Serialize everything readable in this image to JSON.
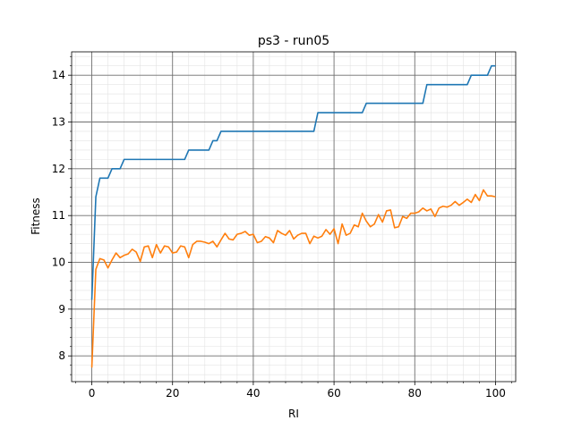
{
  "chart_data": {
    "type": "line",
    "title": "ps3 - run05",
    "xlabel": "RI",
    "ylabel": "Fitness",
    "xlim": [
      -5,
      105
    ],
    "ylim": [
      7.45,
      14.5
    ],
    "grid": true,
    "minor_grid": true,
    "xticks": [
      0,
      20,
      40,
      60,
      80,
      100
    ],
    "yticks": [
      8,
      9,
      10,
      11,
      12,
      13,
      14
    ],
    "series": [
      {
        "color": "#1f77b4",
        "x": [
          0,
          1,
          2,
          3,
          4,
          5,
          6,
          7,
          8,
          9,
          10,
          11,
          12,
          13,
          14,
          15,
          16,
          17,
          18,
          19,
          20,
          21,
          22,
          23,
          24,
          25,
          26,
          27,
          28,
          29,
          30,
          31,
          32,
          33,
          34,
          35,
          36,
          37,
          38,
          39,
          40,
          41,
          42,
          43,
          44,
          45,
          46,
          47,
          48,
          49,
          50,
          51,
          52,
          53,
          54,
          55,
          56,
          57,
          58,
          59,
          60,
          61,
          62,
          63,
          64,
          65,
          66,
          67,
          68,
          69,
          70,
          71,
          72,
          73,
          74,
          75,
          76,
          77,
          78,
          79,
          80,
          81,
          82,
          83,
          84,
          85,
          86,
          87,
          88,
          89,
          90,
          91,
          92,
          93,
          94,
          95,
          96,
          97,
          98,
          99,
          100
        ],
        "y": [
          9.2,
          11.4,
          11.8,
          11.8,
          11.8,
          12.0,
          12.0,
          12.0,
          12.2,
          12.2,
          12.2,
          12.2,
          12.2,
          12.2,
          12.2,
          12.2,
          12.2,
          12.2,
          12.2,
          12.2,
          12.2,
          12.2,
          12.2,
          12.2,
          12.4,
          12.4,
          12.4,
          12.4,
          12.4,
          12.4,
          12.6,
          12.6,
          12.8,
          12.8,
          12.8,
          12.8,
          12.8,
          12.8,
          12.8,
          12.8,
          12.8,
          12.8,
          12.8,
          12.8,
          12.8,
          12.8,
          12.8,
          12.8,
          12.8,
          12.8,
          12.8,
          12.8,
          12.8,
          12.8,
          12.8,
          12.8,
          13.2,
          13.2,
          13.2,
          13.2,
          13.2,
          13.2,
          13.2,
          13.2,
          13.2,
          13.2,
          13.2,
          13.2,
          13.4,
          13.4,
          13.4,
          13.4,
          13.4,
          13.4,
          13.4,
          13.4,
          13.4,
          13.4,
          13.4,
          13.4,
          13.4,
          13.4,
          13.4,
          13.8,
          13.8,
          13.8,
          13.8,
          13.8,
          13.8,
          13.8,
          13.8,
          13.8,
          13.8,
          13.8,
          14.0,
          14.0,
          14.0,
          14.0,
          14.0,
          14.2,
          14.2
        ]
      },
      {
        "color": "#ff7f0e",
        "x": [
          0,
          1,
          2,
          3,
          4,
          5,
          6,
          7,
          8,
          9,
          10,
          11,
          12,
          13,
          14,
          15,
          16,
          17,
          18,
          19,
          20,
          21,
          22,
          23,
          24,
          25,
          26,
          27,
          28,
          29,
          30,
          31,
          32,
          33,
          34,
          35,
          36,
          37,
          38,
          39,
          40,
          41,
          42,
          43,
          44,
          45,
          46,
          47,
          48,
          49,
          50,
          51,
          52,
          53,
          54,
          55,
          56,
          57,
          58,
          59,
          60,
          61,
          62,
          63,
          64,
          65,
          66,
          67,
          68,
          69,
          70,
          71,
          72,
          73,
          74,
          75,
          76,
          77,
          78,
          79,
          80,
          81,
          82,
          83,
          84,
          85,
          86,
          87,
          88,
          89,
          90,
          91,
          92,
          93,
          94,
          95,
          96,
          97,
          98,
          99,
          100
        ],
        "y": [
          7.75,
          9.85,
          10.08,
          10.05,
          9.88,
          10.05,
          10.2,
          10.1,
          10.15,
          10.18,
          10.28,
          10.22,
          10.02,
          10.33,
          10.35,
          10.1,
          10.38,
          10.2,
          10.35,
          10.33,
          10.2,
          10.22,
          10.35,
          10.33,
          10.1,
          10.38,
          10.45,
          10.45,
          10.43,
          10.4,
          10.45,
          10.33,
          10.48,
          10.62,
          10.5,
          10.48,
          10.6,
          10.62,
          10.66,
          10.58,
          10.6,
          10.42,
          10.45,
          10.55,
          10.52,
          10.42,
          10.68,
          10.62,
          10.58,
          10.68,
          10.5,
          10.58,
          10.62,
          10.62,
          10.4,
          10.56,
          10.52,
          10.56,
          10.7,
          10.6,
          10.72,
          10.4,
          10.82,
          10.58,
          10.62,
          10.8,
          10.76,
          11.05,
          10.88,
          10.76,
          10.82,
          11.02,
          10.86,
          11.1,
          11.12,
          10.74,
          10.76,
          10.98,
          10.94,
          11.05,
          11.05,
          11.08,
          11.16,
          11.1,
          11.14,
          10.98,
          11.16,
          11.2,
          11.18,
          11.22,
          11.3,
          11.22,
          11.28,
          11.35,
          11.28,
          11.45,
          11.32,
          11.55,
          11.42,
          11.42,
          11.4
        ]
      }
    ]
  }
}
